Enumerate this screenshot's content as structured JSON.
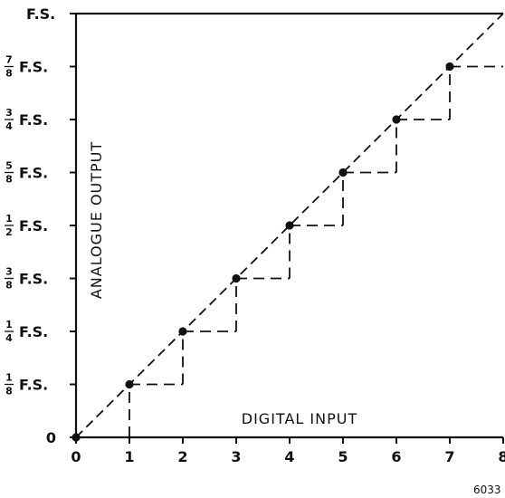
{
  "chart_data": {
    "type": "line",
    "title": "",
    "xlabel": "DIGITAL INPUT",
    "ylabel": "ANALOGUE OUTPUT",
    "xlim": [
      0,
      8
    ],
    "ylim": [
      0,
      1
    ],
    "grid": false,
    "x_ticks": [
      "0",
      "1",
      "2",
      "3",
      "4",
      "5",
      "6",
      "7",
      "8"
    ],
    "y_ticks": [
      {
        "value": 0,
        "num": "",
        "den": "",
        "text": "0"
      },
      {
        "value": 0.125,
        "num": "1",
        "den": "8",
        "text": "F.S."
      },
      {
        "value": 0.25,
        "num": "1",
        "den": "4",
        "text": "F.S."
      },
      {
        "value": 0.375,
        "num": "3",
        "den": "8",
        "text": "F.S."
      },
      {
        "value": 0.5,
        "num": "1",
        "den": "2",
        "text": "F.S."
      },
      {
        "value": 0.625,
        "num": "5",
        "den": "8",
        "text": "F.S."
      },
      {
        "value": 0.75,
        "num": "3",
        "den": "4",
        "text": "F.S."
      },
      {
        "value": 0.875,
        "num": "7",
        "den": "8",
        "text": "F.S."
      },
      {
        "value": 1,
        "num": "",
        "den": "",
        "text": "F.S."
      }
    ],
    "series": [
      {
        "style": "dashed-diagonal",
        "x": [
          0,
          8
        ],
        "y": [
          0,
          1
        ]
      },
      {
        "style": "points",
        "x": [
          0,
          1,
          2,
          3,
          4,
          5,
          6,
          7
        ],
        "y": [
          0,
          0.125,
          0.25,
          0.375,
          0.5,
          0.625,
          0.75,
          0.875
        ]
      },
      {
        "style": "dashed-staircase",
        "x": [
          1,
          2,
          3,
          4,
          5,
          6,
          7,
          8
        ],
        "y": [
          0.125,
          0.25,
          0.375,
          0.5,
          0.625,
          0.75,
          0.875,
          0.875
        ]
      }
    ],
    "figure_number": "6033"
  }
}
